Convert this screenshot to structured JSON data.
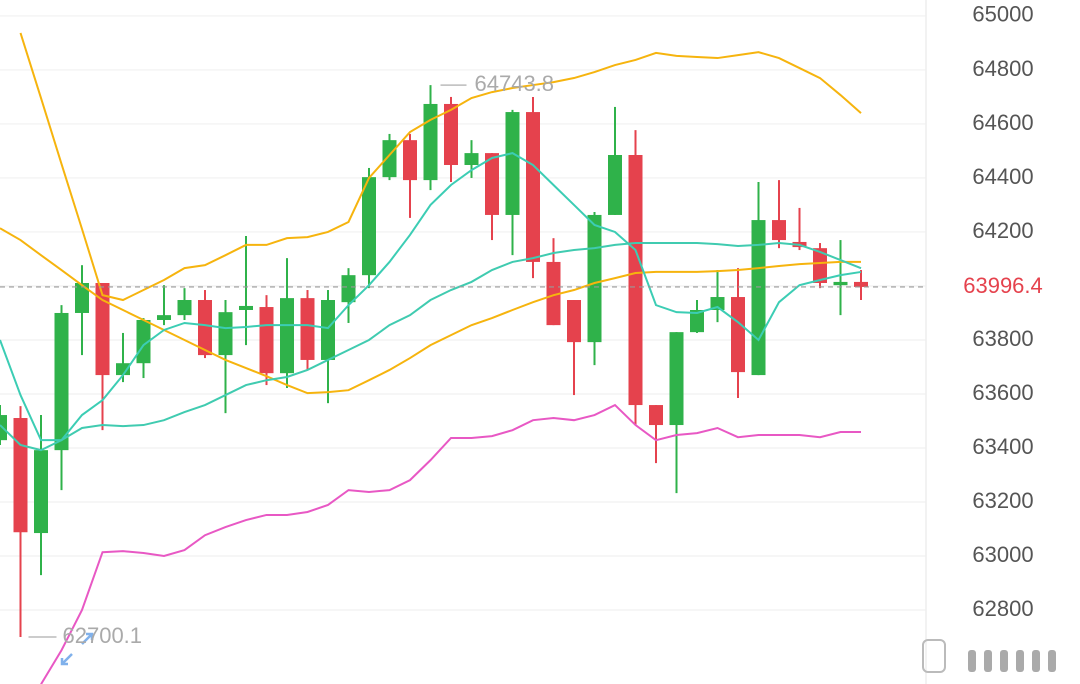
{
  "chart_data": {
    "type": "candlestick",
    "open": [
      63429,
      63511,
      63085,
      63392,
      63900,
      64011,
      63670,
      63714,
      63874,
      63892,
      63948,
      63744,
      63911,
      63922,
      63677,
      63955,
      63726,
      63940,
      64040,
      64403,
      64540,
      64392,
      64674,
      64448,
      64492,
      64263,
      64644,
      64089,
      63948,
      63792,
      64263,
      64485,
      63559,
      63485,
      63829,
      63911,
      63959,
      63670,
      64244,
      64163,
      64140,
      64003,
      64015
    ],
    "high": [
      63559,
      63555,
      63522,
      63929,
      64077,
      64011,
      63826,
      63881,
      64003,
      63992,
      63985,
      63948,
      64185,
      63966,
      64103,
      63985,
      63985,
      64066,
      64437,
      64563,
      64563,
      64743.8,
      64700,
      64540,
      64492,
      64652,
      64700,
      64177,
      63948,
      64274,
      64663,
      64577,
      63559,
      63829,
      63948,
      64059,
      64066,
      64385,
      64392,
      64289,
      64159,
      64170,
      64059
    ],
    "low": [
      63411,
      62700.1,
      62929,
      63244,
      63744,
      63466,
      63644,
      63659,
      63855,
      63874,
      63733,
      63529,
      63781,
      63633,
      63622,
      63689,
      63566,
      63863,
      63992,
      64392,
      64252,
      64355,
      64385,
      64400,
      64170,
      64114,
      64029,
      63855,
      63596,
      63707,
      64263,
      63485,
      63344,
      63233,
      63826,
      63866,
      63585,
      63670,
      64140,
      64133,
      63992,
      63892,
      63948
    ],
    "close": [
      63522,
      63088,
      63392,
      63900,
      64011,
      63670,
      63714,
      63874,
      63892,
      63948,
      63744,
      63903,
      63926,
      63677,
      63955,
      63726,
      63948,
      64040,
      64403,
      64540,
      64392,
      64674,
      64448,
      64492,
      64263,
      64644,
      64089,
      63855,
      63792,
      64263,
      64485,
      63559,
      63485,
      63829,
      63911,
      63959,
      63681,
      64244,
      64170,
      64144,
      64011,
      64015,
      63996.4
    ],
    "up_color": "#2fb24a",
    "down_color": "#e5424d",
    "series": [
      {
        "color": "#f6b40e",
        "values": [
          null,
          64937,
          64696,
          64452,
          64211,
          63966,
          63948,
          63985,
          64022,
          64066,
          64077,
          64114,
          64152,
          64152,
          64177,
          64181,
          64200,
          64237,
          64400,
          64485,
          64570,
          64615,
          64652,
          64696,
          64718,
          64733,
          64744,
          64755,
          64770,
          64792,
          64818,
          64837,
          64863,
          64852,
          64848,
          64844,
          64855,
          64866,
          64844,
          64807,
          64770,
          64707,
          64640
        ]
      },
      {
        "color": "#f6b40e",
        "values": [
          64214,
          64170,
          64114,
          64059,
          64003,
          63948,
          63911,
          63874,
          63837,
          63800,
          63763,
          63726,
          63696,
          63666,
          63633,
          63603,
          63607,
          63614,
          63651,
          63689,
          63733,
          63781,
          63818,
          63855,
          63881,
          63911,
          63940,
          63966,
          63985,
          64011,
          64029,
          64048,
          64052,
          64052,
          64052,
          64055,
          64059,
          64066,
          64074,
          64081,
          64085,
          64089,
          64089
        ]
      },
      {
        "color": "#e858c4",
        "values": [
          null,
          null,
          62525,
          62651,
          62800,
          63014,
          63018,
          63011,
          63000,
          63022,
          63077,
          63107,
          63133,
          63152,
          63152,
          63163,
          63189,
          63244,
          63237,
          63244,
          63281,
          63355,
          63437,
          63437,
          63444,
          63466,
          63503,
          63511,
          63503,
          63522,
          63559,
          63485,
          63429,
          63448,
          63455,
          63474,
          63440,
          63448,
          63448,
          63448,
          63440,
          63459,
          63459
        ]
      },
      {
        "color": "#3ccdb4",
        "values": [
          63800,
          63596,
          63429,
          63429,
          63522,
          63577,
          63670,
          63781,
          63837,
          63863,
          63855,
          63844,
          63848,
          63855,
          63855,
          63855,
          63844,
          63929,
          64003,
          64089,
          64189,
          64300,
          64374,
          64429,
          64474,
          64492,
          64448,
          64374,
          64300,
          64226,
          64200,
          64133,
          63929,
          63903,
          63900,
          63922,
          63866,
          63800,
          63940,
          64003,
          64022,
          64040,
          64052
        ]
      },
      {
        "color": "#40cbb0",
        "values": [
          63485,
          63411,
          63392,
          63429,
          63474,
          63485,
          63481,
          63485,
          63503,
          63533,
          63559,
          63596,
          63633,
          63651,
          63663,
          63689,
          63726,
          63763,
          63800,
          63855,
          63892,
          63948,
          63985,
          64015,
          64059,
          64089,
          64103,
          64122,
          64133,
          64140,
          64152,
          64159,
          64159,
          64159,
          64159,
          64155,
          64148,
          64152,
          64159,
          64152,
          64126,
          64096,
          64066
        ]
      }
    ],
    "ylim": [
      62526,
      65059
    ],
    "yticks": [
      62800,
      63000,
      63200,
      63400,
      63600,
      63800,
      64000,
      64200,
      64400,
      64600,
      64800,
      65000
    ],
    "grid": true
  }
}
